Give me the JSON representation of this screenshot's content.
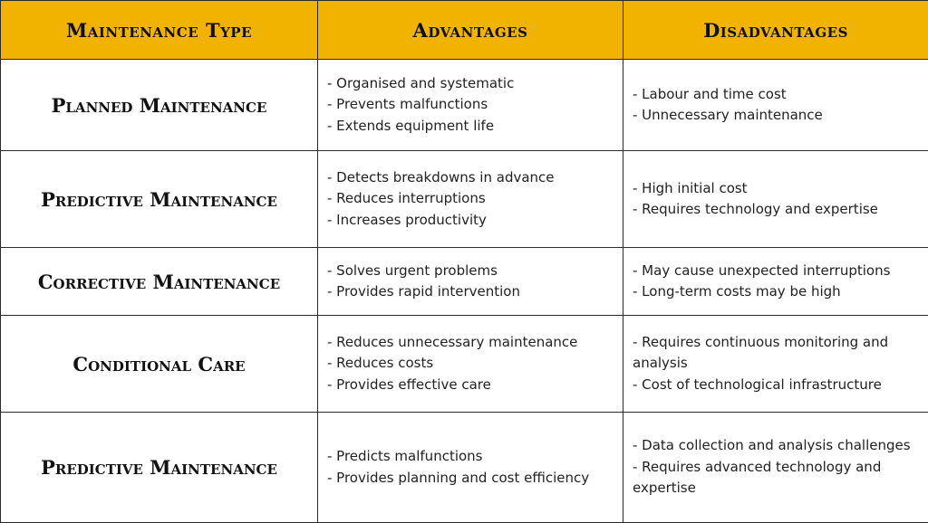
{
  "header": {
    "col_type": "Maintenance Type",
    "col_advantages": "Advantages",
    "col_disadvantages": "Disadvantages"
  },
  "rows": [
    {
      "type": "Planned Maintenance",
      "advantages": [
        "- Organised and systematic",
        "- Prevents malfunctions",
        "- Extends equipment life"
      ],
      "disadvantages": [
        "- Labour and time cost",
        "- Unnecessary maintenance"
      ]
    },
    {
      "type": "Predictive Maintenance",
      "advantages": [
        "- Detects breakdowns in advance",
        "- Reduces interruptions",
        "- Increases productivity"
      ],
      "disadvantages": [
        "- High initial cost",
        "- Requires technology and expertise"
      ]
    },
    {
      "type": "Corrective Maintenance",
      "advantages": [
        "- Solves urgent problems",
        "- Provides rapid intervention"
      ],
      "disadvantages": [
        "- May cause unexpected interruptions",
        "- Long-term costs may be high"
      ]
    },
    {
      "type": "Conditional Care",
      "advantages": [
        "- Reduces unnecessary maintenance",
        "- Reduces costs",
        "- Provides effective care"
      ],
      "disadvantages": [
        "- Requires continuous monitoring and analysis",
        "- Cost of technological infrastructure"
      ]
    },
    {
      "type": "Predictive Maintenance",
      "advantages": [
        "- Predicts malfunctions",
        "- Provides planning and cost efficiency"
      ],
      "disadvantages": [
        "- Data collection and analysis challenges",
        "- Requires advanced technology and expertise"
      ]
    }
  ],
  "colors": {
    "header_background": "#f1b300",
    "border": "#2a2a2a",
    "cell_background": "#ffffff"
  }
}
